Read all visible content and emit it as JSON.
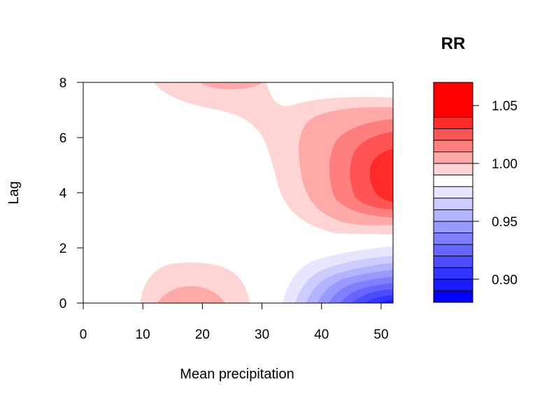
{
  "chart_data": {
    "type": "contour",
    "xlabel": "Mean precipitation",
    "ylabel": "Lag",
    "xlim": [
      0,
      52
    ],
    "ylim": [
      0,
      8
    ],
    "x_ticks": [
      "0",
      "10",
      "20",
      "30",
      "40",
      "50"
    ],
    "y_ticks": [
      "0",
      "2",
      "4",
      "6",
      "8"
    ],
    "legend": {
      "title": "RR",
      "placement": "right",
      "range": [
        0.88,
        1.07
      ],
      "ticks": [
        "0.90",
        "0.95",
        "1.00",
        "1.05"
      ],
      "levels": [
        0.88,
        0.89,
        0.9,
        0.91,
        0.92,
        0.93,
        0.94,
        0.95,
        0.96,
        0.97,
        0.98,
        0.99,
        1.0,
        1.01,
        1.02,
        1.03,
        1.04,
        1.05,
        1.06,
        1.07
      ],
      "colors": [
        "#0000ff",
        "#1b1bff",
        "#3434ff",
        "#4c4cff",
        "#6666ff",
        "#8080ff",
        "#9999ff",
        "#b3b3ff",
        "#ccccff",
        "#e6e6ff",
        "#ffffff",
        "#ffd4d4",
        "#ffa9a9",
        "#ff7f7f",
        "#ff5454",
        "#ff2a2a",
        "#ff0000"
      ]
    },
    "peaks": [
      {
        "x": 52,
        "y": 4.7,
        "rr": 1.04
      },
      {
        "x": 19,
        "y": 0,
        "rr": 1.01
      },
      {
        "x": 22,
        "y": 8.2,
        "rr": 1.01
      },
      {
        "x": 52,
        "y": 0,
        "rr": 0.89
      }
    ]
  }
}
